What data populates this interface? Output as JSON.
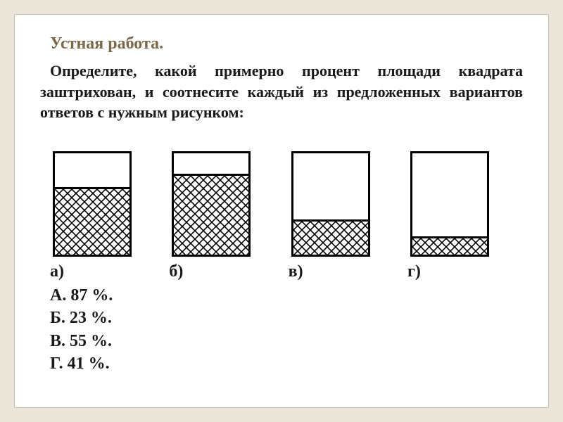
{
  "heading": "Устная работа.",
  "prompt": "Определите, какой примерно процент площади квадрата заштрихован, и соотнесите каждый из предложенных вариантов ответов с нужным рисунком:",
  "squares": [
    {
      "label": "а)",
      "fill_percent": 67
    },
    {
      "label": "б)",
      "fill_percent": 80
    },
    {
      "label": "в)",
      "fill_percent": 35
    },
    {
      "label": "г)",
      "fill_percent": 18
    }
  ],
  "answers": [
    {
      "text": "А. 87 %."
    },
    {
      "text": "Б. 23 %."
    },
    {
      "text": "В. 55 %."
    },
    {
      "text": "Г. 41 %."
    }
  ],
  "style": {
    "page_bg": "#eae4d9",
    "card_bg": "#ffffff",
    "card_border": "#c8c0b0",
    "heading_color": "#7a6a4a",
    "text_color": "#1a1a1a",
    "square_border": "#000000",
    "hatch_stroke": "#000000",
    "heading_fontsize": 24,
    "body_fontsize": 22,
    "label_fontsize": 24,
    "square_width": 112,
    "square_height": 150,
    "square_border_width": 3,
    "hatch_spacing": 12
  }
}
